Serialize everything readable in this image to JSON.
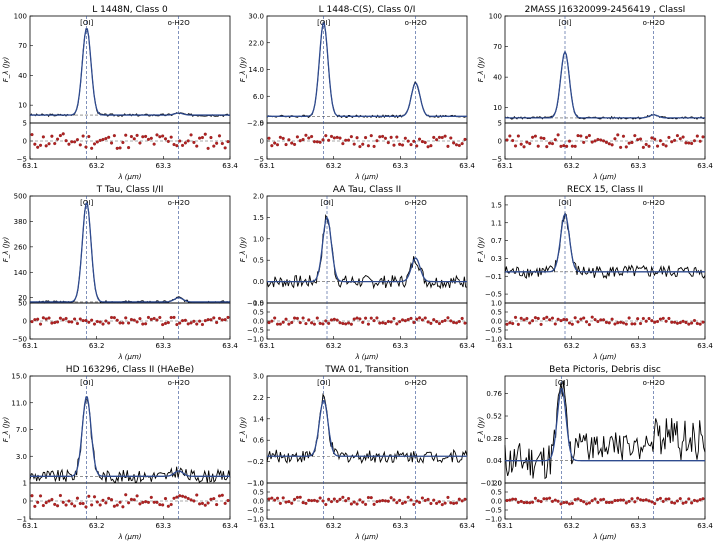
{
  "figure": {
    "x_axis_label": "λ (μm)",
    "y_axis_label": "F_λ (Jy)",
    "x_ticks": [
      "63.1",
      "63.2",
      "63.3",
      "63.4"
    ],
    "line_labels": [
      "[OI]",
      "o-H2O"
    ],
    "colors": {
      "data": "#000000",
      "model": "#2f4b8f",
      "marker_line": "#2f4b8f",
      "residual": "#b22222"
    }
  },
  "chart_data": [
    {
      "type": "line",
      "title": "L 1448N, Class 0",
      "xlim": [
        63.1,
        63.4
      ],
      "main_ylim": [
        -8,
        100
      ],
      "main_ticks": [
        "100",
        "70",
        "40",
        "10"
      ],
      "baseline": 0,
      "lines": [
        {
          "label": "[OI]",
          "x": 63.185,
          "peak": 88
        },
        {
          "label": "o-H2O",
          "x": 63.323,
          "peak": 2
        }
      ],
      "residual_ylim": [
        -5,
        5
      ],
      "residual_ticks": [
        "5",
        "0",
        "−5"
      ],
      "residual_scale": 2.2
    },
    {
      "type": "line",
      "title": "L 1448-C(S), Class 0/I",
      "xlim": [
        63.1,
        63.4
      ],
      "main_ylim": [
        -2,
        30
      ],
      "main_ticks": [
        "30.0",
        "22.0",
        "14.0",
        "6.0",
        "−2.0"
      ],
      "baseline": 0,
      "lines": [
        {
          "label": "[OI]",
          "x": 63.185,
          "peak": 28
        },
        {
          "label": "o-H2O",
          "x": 63.323,
          "peak": 10
        }
      ],
      "residual_ylim": [
        -5,
        5
      ],
      "residual_ticks": [
        "5",
        "0",
        "−5"
      ],
      "residual_scale": 1.6
    },
    {
      "type": "line",
      "title": "2MASS J16320099-2456419 , ClassI",
      "xlim": [
        63.1,
        63.4
      ],
      "main_ylim": [
        -5,
        100
      ],
      "main_ticks": [
        "100",
        "70",
        "40",
        "10"
      ],
      "baseline": 0,
      "lines": [
        {
          "label": "[OI]",
          "x": 63.19,
          "peak": 65
        },
        {
          "label": "o-H2O",
          "x": 63.323,
          "peak": 3
        }
      ],
      "residual_ylim": [
        -5,
        5
      ],
      "residual_ticks": [
        "5",
        "0",
        "−5"
      ],
      "residual_scale": 1.8
    },
    {
      "type": "line",
      "title": "T Tau, Class I/II",
      "xlim": [
        63.1,
        63.4
      ],
      "main_ylim": [
        -5,
        500
      ],
      "main_ticks": [
        "500",
        "380",
        "260",
        "140",
        "20"
      ],
      "baseline": 0,
      "lines": [
        {
          "label": "[OI]",
          "x": 63.185,
          "peak": 470
        },
        {
          "label": "o-H2O",
          "x": 63.323,
          "peak": 20
        }
      ],
      "residual_ylim": [
        -50,
        50
      ],
      "residual_ticks": [
        "50",
        "0",
        "−50"
      ],
      "residual_scale": 10
    },
    {
      "type": "line",
      "title": "AA Tau, Class II",
      "xlim": [
        63.1,
        63.4
      ],
      "main_ylim": [
        -0.5,
        2.0
      ],
      "main_ticks": [
        "2.0",
        "1.5",
        "1.0",
        "0.5",
        "0.0",
        "−0.5"
      ],
      "baseline": 0,
      "lines": [
        {
          "label": "[OI]",
          "x": 63.19,
          "peak": 1.5
        },
        {
          "label": "o-H2O",
          "x": 63.323,
          "peak": 0.55
        }
      ],
      "residual_ylim": [
        -1.0,
        1.0
      ],
      "residual_ticks": [
        "1.0",
        "0.5",
        "0.0",
        "−0.5",
        "−1.0"
      ],
      "residual_scale": 0.18
    },
    {
      "type": "line",
      "title": "RECX 15, Class II",
      "xlim": [
        63.1,
        63.4
      ],
      "main_ylim": [
        -0.7,
        1.7
      ],
      "main_ticks": [
        "1.5",
        "1.1",
        "0.7",
        "0.3",
        "−0.1",
        "−0.5"
      ],
      "baseline": 0,
      "lines": [
        {
          "label": "[OI]",
          "x": 63.19,
          "peak": 1.3
        },
        {
          "label": "o-H2O",
          "x": 63.323,
          "peak": 0.0
        }
      ],
      "residual_ylim": [
        -1.0,
        1.0
      ],
      "residual_ticks": [
        "1.0",
        "0.5",
        "0.0",
        "−0.5",
        "−1.0"
      ],
      "residual_scale": 0.22
    },
    {
      "type": "line",
      "title": "HD 163296, Class II (HAeBe)",
      "xlim": [
        63.1,
        63.4
      ],
      "main_ylim": [
        -1,
        15
      ],
      "main_ticks": [
        "15.0",
        "11.0",
        "7.0",
        "3.0"
      ],
      "baseline": 0,
      "lines": [
        {
          "label": "[OI]",
          "x": 63.185,
          "peak": 12
        },
        {
          "label": "o-H2O",
          "x": 63.323,
          "peak": 0.8
        }
      ],
      "residual_ylim": [
        -1,
        1
      ],
      "residual_ticks": [
        "1",
        "0",
        "−1"
      ],
      "residual_scale": 0.35
    },
    {
      "type": "line",
      "title": "TWA 01, Transition",
      "xlim": [
        63.1,
        63.4
      ],
      "main_ylim": [
        -1.0,
        3.0
      ],
      "main_ticks": [
        "3.0",
        "2.2",
        "1.4",
        "0.6",
        "−0.2",
        "−1.0"
      ],
      "baseline": 0,
      "lines": [
        {
          "label": "[OI]",
          "x": 63.185,
          "peak": 2.1
        },
        {
          "label": "o-H2O",
          "x": 63.323,
          "peak": 0.0
        }
      ],
      "residual_ylim": [
        -1.0,
        1.0
      ],
      "residual_ticks": [
        "1.0",
        "0.5",
        "0.0",
        "−0.5",
        "−1.0"
      ],
      "residual_scale": 0.22
    },
    {
      "type": "line",
      "title": "Beta Pictoris, Debris disc",
      "xlim": [
        63.1,
        63.4
      ],
      "main_ylim": [
        -0.2,
        0.95
      ],
      "main_ticks": [
        "0.76",
        "0.52",
        "0.28",
        "0.04",
        "−0.20"
      ],
      "baseline": 0.04,
      "lines": [
        {
          "label": "[OI]",
          "x": 63.185,
          "peak": 0.78
        },
        {
          "label": "o-H2O",
          "x": 63.323,
          "peak": 0.0
        }
      ],
      "residual_ylim": [
        -1.0,
        1.0
      ],
      "residual_ticks": [
        "1.0",
        "0.5",
        "0.0",
        "−0.5",
        "−1.0"
      ],
      "residual_scale": 0.16
    }
  ]
}
